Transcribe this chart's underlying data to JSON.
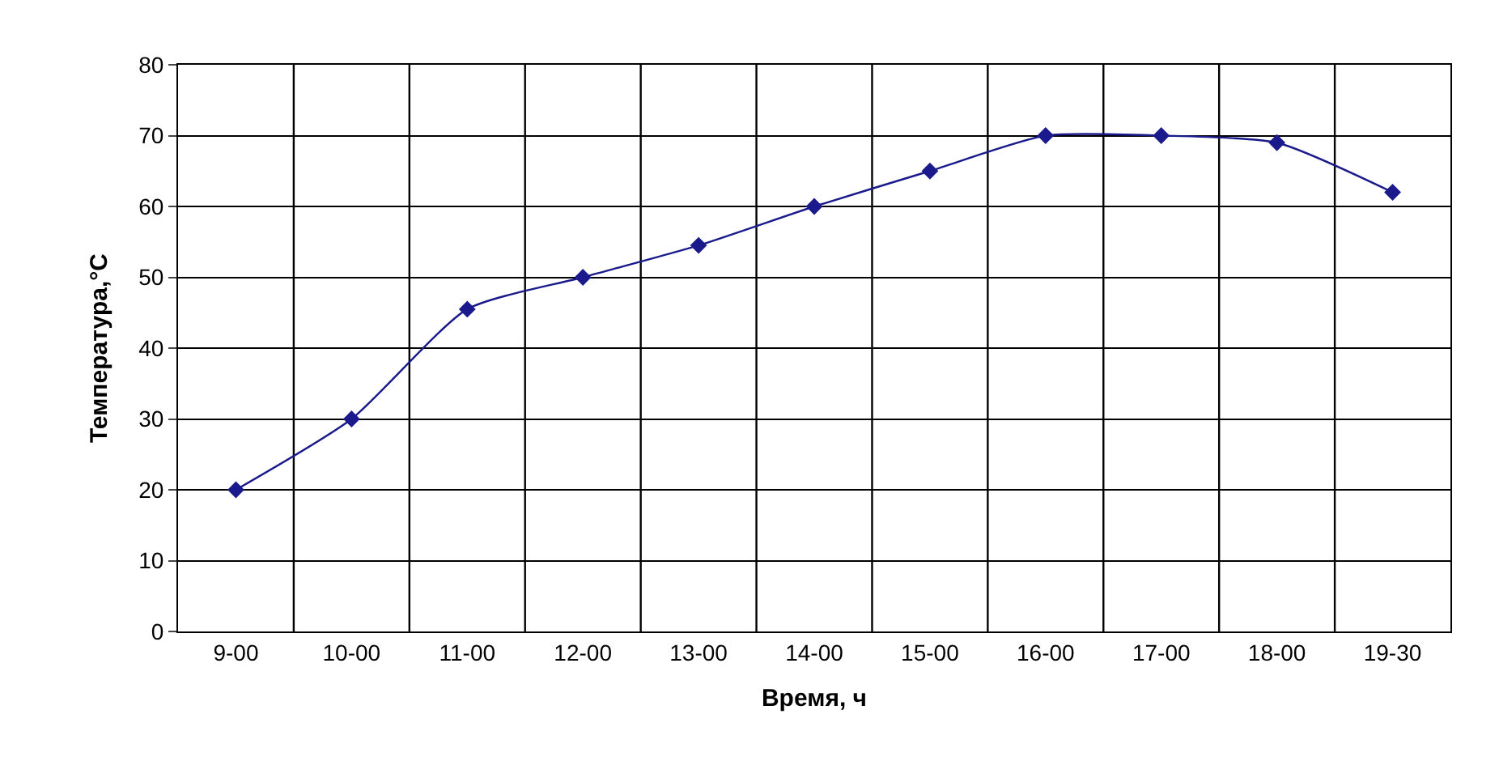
{
  "chart_data": {
    "type": "line",
    "xlabel": "Время, ч",
    "ylabel": "Температура,°С",
    "categories": [
      "9-00",
      "10-00",
      "11-00",
      "12-00",
      "13-00",
      "14-00",
      "15-00",
      "16-00",
      "17-00",
      "18-00",
      "19-30"
    ],
    "series": [
      {
        "color": "#1a1a8c",
        "values": [
          20,
          30,
          45.5,
          50,
          54.5,
          60,
          65,
          70,
          70,
          69,
          62
        ]
      }
    ],
    "ylim": [
      0,
      80
    ],
    "yticks": [
      0,
      10,
      20,
      30,
      40,
      50,
      60,
      70,
      80
    ],
    "grid": true,
    "marker": "diamond",
    "line_style": "solid",
    "legend": false
  }
}
